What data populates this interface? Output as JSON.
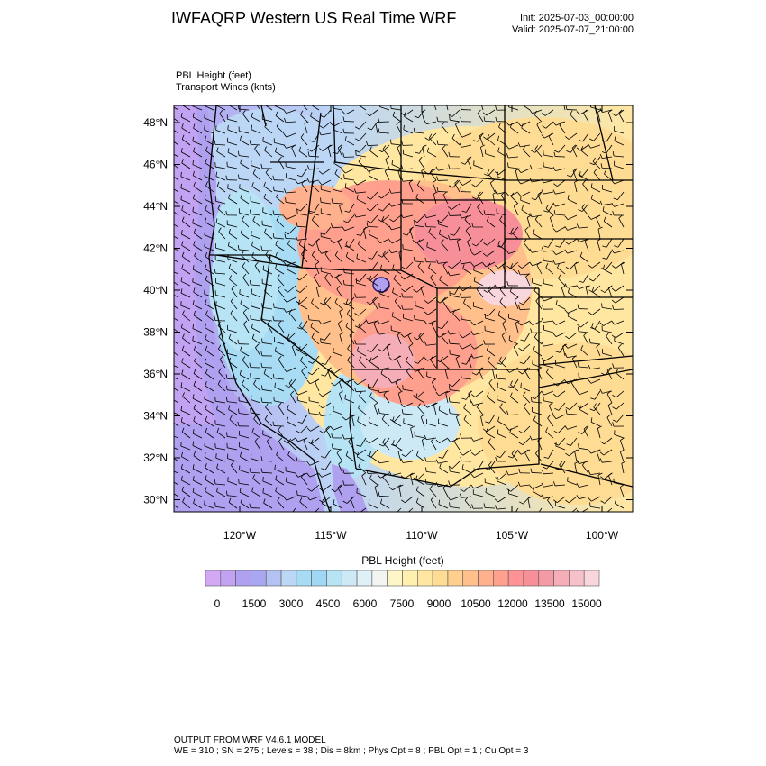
{
  "header": {
    "title": "IWFAQRP Western US Real Time WRF",
    "init": "Init: 2025-07-03_00:00:00",
    "valid": "Valid: 2025-07-07_21:00:00",
    "field1": "PBL Height   (feet)",
    "field2": "Transport Winds   (knts)"
  },
  "map": {
    "lat_labels": [
      "48°N",
      "46°N",
      "44°N",
      "42°N",
      "40°N",
      "38°N",
      "36°N",
      "34°N",
      "32°N",
      "30°N"
    ],
    "lon_labels": [
      "120°W",
      "115°W",
      "110°W",
      "105°W",
      "100°W"
    ]
  },
  "colorbar": {
    "title": "PBL Height  (feet)",
    "labels": [
      "0",
      "1500",
      "3000",
      "4500",
      "6000",
      "7500",
      "9000",
      "10500",
      "12000",
      "13500",
      "15000"
    ],
    "colors": [
      "#d3a9f5",
      "#c2a2f2",
      "#b0a0f0",
      "#a9a7f2",
      "#b3c2f2",
      "#bcd6f5",
      "#a8dcf5",
      "#9fd7f5",
      "#b7e4f5",
      "#cde9f5",
      "#e0f0f7",
      "#f3f5f3",
      "#fff6c8",
      "#fff0b0",
      "#ffe7a2",
      "#ffdc94",
      "#ffcf8e",
      "#ffc08c",
      "#ffb08c",
      "#ffa08e",
      "#ff9294",
      "#f78f99",
      "#f39aa4",
      "#f5adb7",
      "#f7c1c9",
      "#f9d6dc"
    ]
  },
  "footer": {
    "line1": "OUTPUT FROM WRF V4.6.1 MODEL",
    "line2": "WE = 310 ; SN = 275 ; Levels = 38 ; Dis = 8km ; Phys Opt = 8 ; PBL Opt = 1 ; Cu Opt = 3"
  }
}
